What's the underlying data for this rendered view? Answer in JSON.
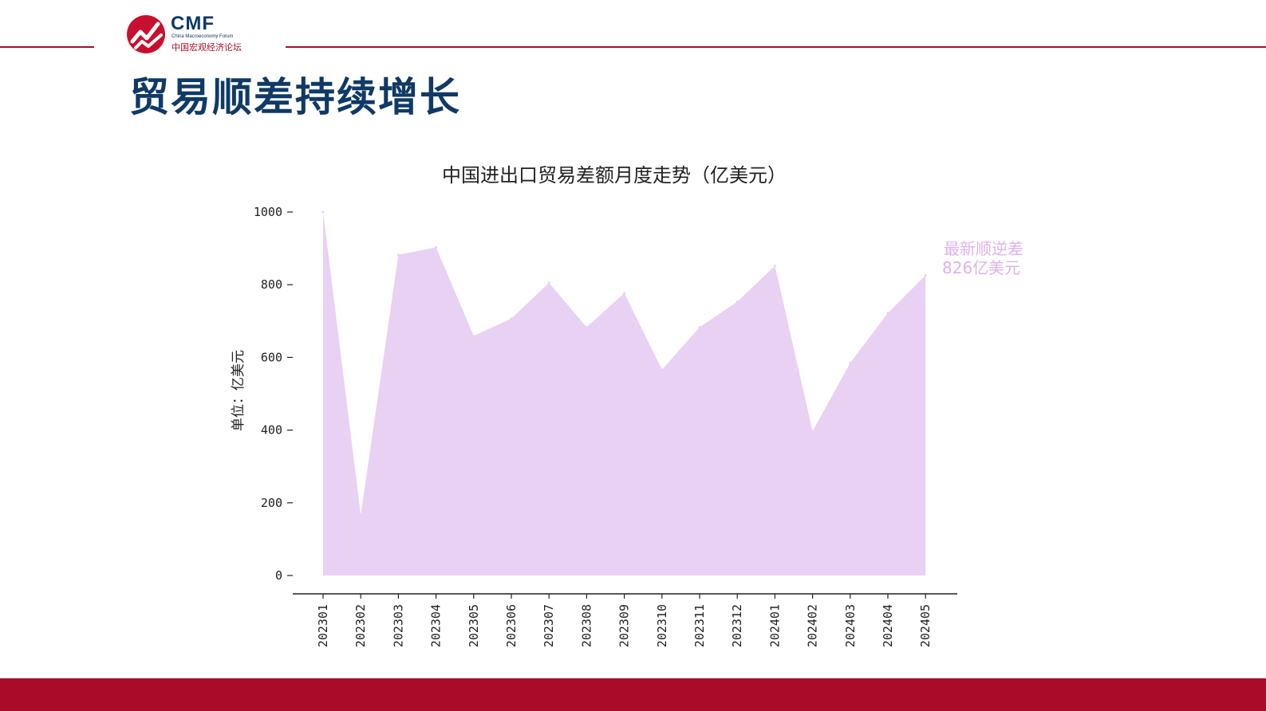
{
  "header": {
    "logo_abbr": "CMF",
    "logo_en": "China Macroeconomy Forum",
    "logo_cn": "中国宏观经济论坛",
    "title": "贸易顺差持续增长"
  },
  "colors": {
    "brand_red": "#a8102a",
    "brand_navy": "#0f3a66",
    "area_fill": "#e8d1f3",
    "annotation": "#dcb3ec"
  },
  "chart_data": {
    "type": "area",
    "title": "中国进出口贸易差额月度走势（亿美元）",
    "ylabel": "单位：亿美元",
    "xlabel": "",
    "ylim": [
      0,
      1000
    ],
    "yticks": [
      0,
      200,
      400,
      600,
      800,
      1000
    ],
    "grid": false,
    "categories": [
      "202301",
      "202302",
      "202303",
      "202304",
      "202305",
      "202306",
      "202307",
      "202308",
      "202309",
      "202310",
      "202311",
      "202312",
      "202401",
      "202402",
      "202403",
      "202404",
      "202405"
    ],
    "series": [
      {
        "values": [
          1000,
          166,
          882,
          903,
          659,
          707,
          805,
          683,
          777,
          566,
          683,
          753,
          852,
          397,
          585,
          722,
          826
        ],
        "color": "#e8d1f3"
      }
    ],
    "annotation": {
      "line1": "最新顺逆差",
      "line2": "826亿美元"
    }
  }
}
